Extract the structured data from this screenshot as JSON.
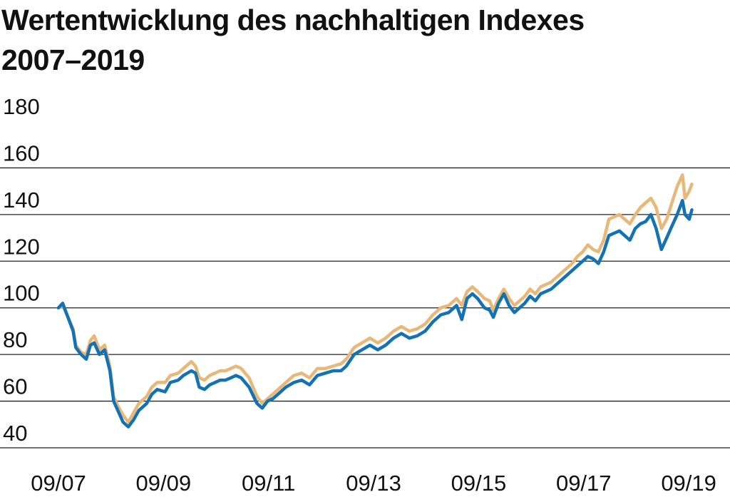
{
  "chart_data": {
    "type": "line",
    "title": "Wertentwicklung des nachhaltigen Indexes",
    "subtitle": "2007–2019",
    "xlabel": "",
    "ylabel": "",
    "ylim": [
      40,
      180
    ],
    "yticks": [
      40,
      60,
      80,
      100,
      120,
      140,
      160,
      180
    ],
    "xlim": [
      2007.67,
      2019.75
    ],
    "xticks": [
      {
        "x": 2007.67,
        "label": "09/07"
      },
      {
        "x": 2009.67,
        "label": "09/09"
      },
      {
        "x": 2011.67,
        "label": "09/11"
      },
      {
        "x": 2013.67,
        "label": "09/13"
      },
      {
        "x": 2015.67,
        "label": "09/15"
      },
      {
        "x": 2017.67,
        "label": "09/17"
      },
      {
        "x": 2019.67,
        "label": "09/19"
      }
    ],
    "grid": "horizontal",
    "legend": "none",
    "colors": {
      "series_gold": "#e8b87b",
      "series_blue": "#1272b3",
      "grid": "#222222"
    },
    "series": [
      {
        "color": "#e8b87b",
        "points": [
          [
            2007.67,
            100
          ],
          [
            2007.75,
            101
          ],
          [
            2007.85,
            96
          ],
          [
            2007.95,
            91
          ],
          [
            2008.0,
            84
          ],
          [
            2008.1,
            81
          ],
          [
            2008.2,
            80
          ],
          [
            2008.28,
            86
          ],
          [
            2008.35,
            88
          ],
          [
            2008.45,
            82
          ],
          [
            2008.55,
            84
          ],
          [
            2008.65,
            75
          ],
          [
            2008.72,
            62
          ],
          [
            2008.8,
            58
          ],
          [
            2008.9,
            54
          ],
          [
            2009.0,
            51
          ],
          [
            2009.1,
            55
          ],
          [
            2009.2,
            59
          ],
          [
            2009.35,
            62
          ],
          [
            2009.45,
            66
          ],
          [
            2009.55,
            68
          ],
          [
            2009.7,
            68
          ],
          [
            2009.8,
            71
          ],
          [
            2009.95,
            72
          ],
          [
            2010.05,
            74
          ],
          [
            2010.2,
            77
          ],
          [
            2010.28,
            75
          ],
          [
            2010.35,
            70
          ],
          [
            2010.45,
            69
          ],
          [
            2010.55,
            71
          ],
          [
            2010.65,
            72
          ],
          [
            2010.75,
            73
          ],
          [
            2010.85,
            73
          ],
          [
            2010.95,
            74
          ],
          [
            2011.05,
            75
          ],
          [
            2011.15,
            74
          ],
          [
            2011.3,
            70
          ],
          [
            2011.45,
            62
          ],
          [
            2011.55,
            59
          ],
          [
            2011.65,
            61
          ],
          [
            2011.75,
            63
          ],
          [
            2011.85,
            65
          ],
          [
            2012.0,
            68
          ],
          [
            2012.15,
            71
          ],
          [
            2012.3,
            72
          ],
          [
            2012.45,
            70
          ],
          [
            2012.6,
            74
          ],
          [
            2012.75,
            74
          ],
          [
            2012.9,
            75
          ],
          [
            2013.05,
            76
          ],
          [
            2013.15,
            78
          ],
          [
            2013.3,
            83
          ],
          [
            2013.45,
            85
          ],
          [
            2013.6,
            87
          ],
          [
            2013.75,
            85
          ],
          [
            2013.9,
            87
          ],
          [
            2014.05,
            90
          ],
          [
            2014.2,
            92
          ],
          [
            2014.35,
            90
          ],
          [
            2014.5,
            91
          ],
          [
            2014.65,
            93
          ],
          [
            2014.8,
            97
          ],
          [
            2014.95,
            100
          ],
          [
            2015.1,
            101
          ],
          [
            2015.25,
            104
          ],
          [
            2015.35,
            101
          ],
          [
            2015.45,
            107
          ],
          [
            2015.55,
            109
          ],
          [
            2015.65,
            107
          ],
          [
            2015.78,
            104
          ],
          [
            2015.88,
            103
          ],
          [
            2015.95,
            99
          ],
          [
            2016.05,
            104
          ],
          [
            2016.15,
            108
          ],
          [
            2016.25,
            104
          ],
          [
            2016.35,
            101
          ],
          [
            2016.45,
            103
          ],
          [
            2016.55,
            105
          ],
          [
            2016.65,
            108
          ],
          [
            2016.75,
            106
          ],
          [
            2016.85,
            109
          ],
          [
            2016.95,
            110
          ],
          [
            2017.05,
            111
          ],
          [
            2017.15,
            113
          ],
          [
            2017.25,
            115
          ],
          [
            2017.35,
            117
          ],
          [
            2017.45,
            119
          ],
          [
            2017.55,
            122
          ],
          [
            2017.65,
            124
          ],
          [
            2017.75,
            127
          ],
          [
            2017.85,
            125
          ],
          [
            2017.95,
            124
          ],
          [
            2018.05,
            129
          ],
          [
            2018.15,
            138
          ],
          [
            2018.25,
            139
          ],
          [
            2018.35,
            140
          ],
          [
            2018.45,
            138
          ],
          [
            2018.55,
            136
          ],
          [
            2018.65,
            140
          ],
          [
            2018.75,
            143
          ],
          [
            2018.85,
            145
          ],
          [
            2018.95,
            147
          ],
          [
            2019.05,
            143
          ],
          [
            2019.15,
            134
          ],
          [
            2019.25,
            138
          ],
          [
            2019.35,
            145
          ],
          [
            2019.45,
            152
          ],
          [
            2019.55,
            157
          ],
          [
            2019.6,
            147
          ],
          [
            2019.68,
            150
          ],
          [
            2019.73,
            153
          ]
        ]
      },
      {
        "color": "#1272b3",
        "points": [
          [
            2007.67,
            100
          ],
          [
            2007.75,
            102
          ],
          [
            2007.85,
            96
          ],
          [
            2007.95,
            90
          ],
          [
            2008.0,
            83
          ],
          [
            2008.1,
            80
          ],
          [
            2008.2,
            78
          ],
          [
            2008.28,
            84
          ],
          [
            2008.35,
            85
          ],
          [
            2008.45,
            80
          ],
          [
            2008.55,
            82
          ],
          [
            2008.65,
            73
          ],
          [
            2008.72,
            60
          ],
          [
            2008.8,
            56
          ],
          [
            2008.9,
            51
          ],
          [
            2009.0,
            49
          ],
          [
            2009.1,
            52
          ],
          [
            2009.2,
            56
          ],
          [
            2009.35,
            59
          ],
          [
            2009.45,
            63
          ],
          [
            2009.55,
            65
          ],
          [
            2009.7,
            64
          ],
          [
            2009.8,
            68
          ],
          [
            2009.95,
            69
          ],
          [
            2010.05,
            71
          ],
          [
            2010.2,
            73
          ],
          [
            2010.28,
            72
          ],
          [
            2010.35,
            66
          ],
          [
            2010.45,
            65
          ],
          [
            2010.55,
            67
          ],
          [
            2010.65,
            68
          ],
          [
            2010.75,
            69
          ],
          [
            2010.85,
            69
          ],
          [
            2010.95,
            70
          ],
          [
            2011.05,
            71
          ],
          [
            2011.15,
            70
          ],
          [
            2011.3,
            66
          ],
          [
            2011.45,
            59
          ],
          [
            2011.55,
            57
          ],
          [
            2011.65,
            60
          ],
          [
            2011.75,
            61
          ],
          [
            2011.85,
            63
          ],
          [
            2012.0,
            66
          ],
          [
            2012.15,
            68
          ],
          [
            2012.3,
            69
          ],
          [
            2012.45,
            67
          ],
          [
            2012.6,
            71
          ],
          [
            2012.75,
            72
          ],
          [
            2012.9,
            73
          ],
          [
            2013.05,
            73
          ],
          [
            2013.15,
            75
          ],
          [
            2013.3,
            80
          ],
          [
            2013.45,
            82
          ],
          [
            2013.6,
            84
          ],
          [
            2013.75,
            82
          ],
          [
            2013.9,
            84
          ],
          [
            2014.05,
            87
          ],
          [
            2014.2,
            89
          ],
          [
            2014.35,
            87
          ],
          [
            2014.5,
            88
          ],
          [
            2014.65,
            90
          ],
          [
            2014.8,
            94
          ],
          [
            2014.95,
            97
          ],
          [
            2015.1,
            98
          ],
          [
            2015.25,
            101
          ],
          [
            2015.35,
            95
          ],
          [
            2015.45,
            104
          ],
          [
            2015.55,
            106
          ],
          [
            2015.65,
            104
          ],
          [
            2015.78,
            100
          ],
          [
            2015.88,
            99
          ],
          [
            2015.95,
            96
          ],
          [
            2016.05,
            102
          ],
          [
            2016.15,
            106
          ],
          [
            2016.25,
            101
          ],
          [
            2016.35,
            98
          ],
          [
            2016.45,
            100
          ],
          [
            2016.55,
            102
          ],
          [
            2016.65,
            105
          ],
          [
            2016.75,
            103
          ],
          [
            2016.85,
            106
          ],
          [
            2016.95,
            107
          ],
          [
            2017.05,
            108
          ],
          [
            2017.15,
            110
          ],
          [
            2017.25,
            112
          ],
          [
            2017.35,
            114
          ],
          [
            2017.45,
            116
          ],
          [
            2017.55,
            118
          ],
          [
            2017.65,
            120
          ],
          [
            2017.75,
            122
          ],
          [
            2017.85,
            121
          ],
          [
            2017.95,
            119
          ],
          [
            2018.05,
            124
          ],
          [
            2018.15,
            131
          ],
          [
            2018.25,
            132
          ],
          [
            2018.35,
            133
          ],
          [
            2018.45,
            131
          ],
          [
            2018.55,
            129
          ],
          [
            2018.65,
            134
          ],
          [
            2018.75,
            136
          ],
          [
            2018.85,
            137
          ],
          [
            2018.95,
            140
          ],
          [
            2019.05,
            134
          ],
          [
            2019.15,
            125
          ],
          [
            2019.25,
            130
          ],
          [
            2019.35,
            135
          ],
          [
            2019.45,
            140
          ],
          [
            2019.55,
            146
          ],
          [
            2019.6,
            140
          ],
          [
            2019.68,
            138
          ],
          [
            2019.73,
            142
          ]
        ]
      }
    ]
  }
}
